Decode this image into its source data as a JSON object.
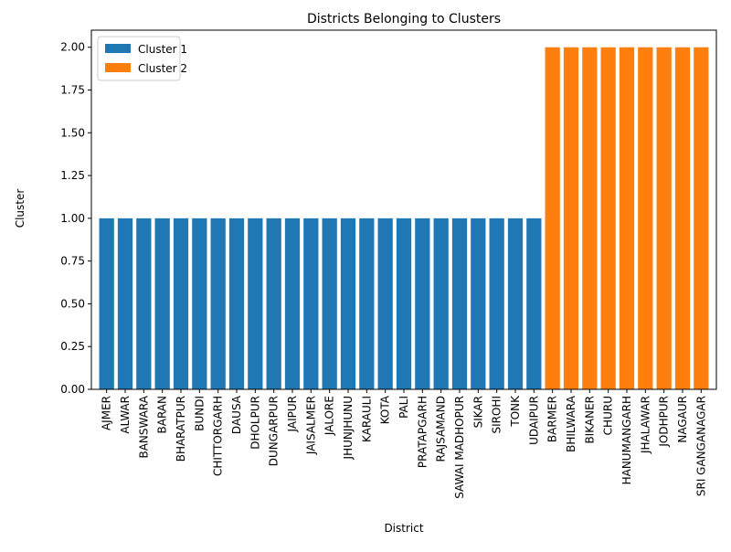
{
  "chart_data": {
    "type": "bar",
    "title": "Districts Belonging to Clusters",
    "x_label": "District",
    "y_label": "Cluster",
    "categories": [
      "AJMER",
      "ALWAR",
      "BANSWARA",
      "BARAN",
      "BHARATPUR",
      "BUNDI",
      "CHITTORGARH",
      "DAUSA",
      "DHOLPUR",
      "DUNGARPUR",
      "JAIPUR",
      "JAISALMER",
      "JALORE",
      "JHUNJHUNU",
      "KARAULI",
      "KOTA",
      "PALI",
      "PRATAPGARH",
      "RAJSAMAND",
      "SAWAI MADHOPUR",
      "SIKAR",
      "SIROHI",
      "TONK",
      "UDAIPUR",
      "BARMER",
      "BHILWARA",
      "BIKANER",
      "CHURU",
      "HANUMANGARH",
      "JHALAWAR",
      "JODHPUR",
      "NAGAUR",
      "SRI GANGANAGAR"
    ],
    "series": [
      {
        "name": "Cluster 1",
        "color": "#1f77b4",
        "values": [
          1,
          1,
          1,
          1,
          1,
          1,
          1,
          1,
          1,
          1,
          1,
          1,
          1,
          1,
          1,
          1,
          1,
          1,
          1,
          1,
          1,
          1,
          1,
          1,
          null,
          null,
          null,
          null,
          null,
          null,
          null,
          null,
          null
        ]
      },
      {
        "name": "Cluster 2",
        "color": "#ff7f0e",
        "values": [
          null,
          null,
          null,
          null,
          null,
          null,
          null,
          null,
          null,
          null,
          null,
          null,
          null,
          null,
          null,
          null,
          null,
          null,
          null,
          null,
          null,
          null,
          null,
          null,
          2,
          2,
          2,
          2,
          2,
          2,
          2,
          2,
          2
        ]
      }
    ],
    "ylim": [
      0,
      2.1
    ],
    "yticks": [
      {
        "value": 0,
        "label": "0.00"
      },
      {
        "value": 0.25,
        "label": "0.25"
      },
      {
        "value": 0.5,
        "label": "0.50"
      },
      {
        "value": 0.75,
        "label": "0.75"
      },
      {
        "value": 1,
        "label": "1.00"
      },
      {
        "value": 1.25,
        "label": "1.25"
      },
      {
        "value": 1.5,
        "label": "1.50"
      },
      {
        "value": 1.75,
        "label": "1.75"
      },
      {
        "value": 2,
        "label": "2.00"
      }
    ],
    "legend": "upper left"
  }
}
